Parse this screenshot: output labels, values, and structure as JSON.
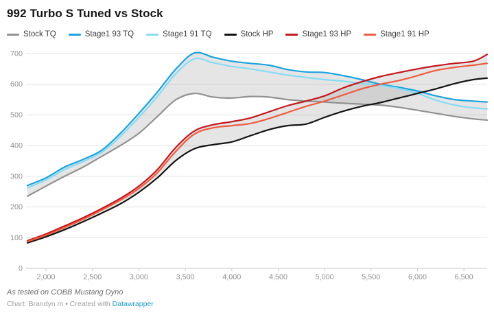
{
  "title": "992 Turbo S Tuned vs Stock",
  "footer": {
    "note": "As tested on COBB Mustang Dyno",
    "credit_prefix": "Chart: Brandyn m • Created with ",
    "credit_link": "Datawrapper"
  },
  "chart_data": {
    "type": "line",
    "title": "992 Turbo S Tuned vs Stock",
    "xlabel": "",
    "ylabel": "",
    "legend_position": "top",
    "grid": "horizontal",
    "x_range": [
      1800,
      6750
    ],
    "y_range": [
      0,
      700
    ],
    "x_tick_values": [
      2000,
      2500,
      3000,
      3500,
      4000,
      4500,
      5000,
      5500,
      6000,
      6500
    ],
    "x_tick_labels": [
      "2,000",
      "2,500",
      "3,000",
      "3,500",
      "4,000",
      "4,500",
      "5,000",
      "5,500",
      "6,000",
      "6,500"
    ],
    "y_tick_values": [
      0,
      100,
      200,
      300,
      400,
      500,
      600,
      700
    ],
    "x": [
      1800,
      2000,
      2200,
      2400,
      2600,
      2800,
      3000,
      3200,
      3400,
      3600,
      3800,
      4000,
      4200,
      4400,
      4600,
      4800,
      5000,
      5200,
      5400,
      5600,
      5800,
      6000,
      6200,
      6400,
      6600,
      6750
    ],
    "series": [
      {
        "name": "Stock TQ",
        "color": "#919191",
        "values": [
          235,
          268,
          300,
          330,
          365,
          400,
          440,
          495,
          550,
          570,
          558,
          555,
          560,
          558,
          550,
          545,
          542,
          538,
          535,
          532,
          525,
          515,
          505,
          495,
          487,
          483
        ]
      },
      {
        "name": "Stage1 93 TQ",
        "color": "#1aa3de",
        "values": [
          270,
          295,
          330,
          355,
          385,
          440,
          505,
          575,
          650,
          702,
          688,
          675,
          668,
          662,
          648,
          640,
          638,
          628,
          615,
          600,
          590,
          578,
          562,
          550,
          545,
          542
        ]
      },
      {
        "name": "Stage1 91 TQ",
        "color": "#86dcf4",
        "values": [
          262,
          288,
          322,
          348,
          378,
          430,
          492,
          560,
          635,
          683,
          670,
          658,
          650,
          640,
          630,
          622,
          615,
          610,
          602,
          596,
          586,
          570,
          548,
          532,
          523,
          520
        ]
      },
      {
        "name": "Stock HP",
        "color": "#131313",
        "values": [
          83,
          103,
          126,
          152,
          180,
          210,
          248,
          295,
          352,
          390,
          403,
          412,
          432,
          452,
          465,
          470,
          492,
          512,
          528,
          540,
          555,
          570,
          585,
          602,
          615,
          620
        ]
      },
      {
        "name": "Stage1 93 HP",
        "color": "#c4161c",
        "values": [
          90,
          112,
          138,
          165,
          195,
          228,
          268,
          322,
          395,
          448,
          468,
          478,
          490,
          510,
          530,
          545,
          562,
          588,
          608,
          625,
          638,
          650,
          660,
          668,
          675,
          697
        ]
      },
      {
        "name": "Stage1 91 HP",
        "color": "#ef5b3f",
        "values": [
          87,
          108,
          133,
          160,
          190,
          222,
          260,
          312,
          382,
          438,
          458,
          465,
          472,
          488,
          508,
          528,
          545,
          565,
          585,
          600,
          612,
          628,
          645,
          655,
          662,
          668
        ]
      }
    ],
    "bands": [
      {
        "lower": "Stock TQ",
        "upper": "Stage1 93 TQ",
        "fill": "#999999",
        "opacity": 0.25
      },
      {
        "lower": "Stock HP",
        "upper": "Stage1 93 HP",
        "fill": "#999999",
        "opacity": 0.25
      }
    ]
  }
}
